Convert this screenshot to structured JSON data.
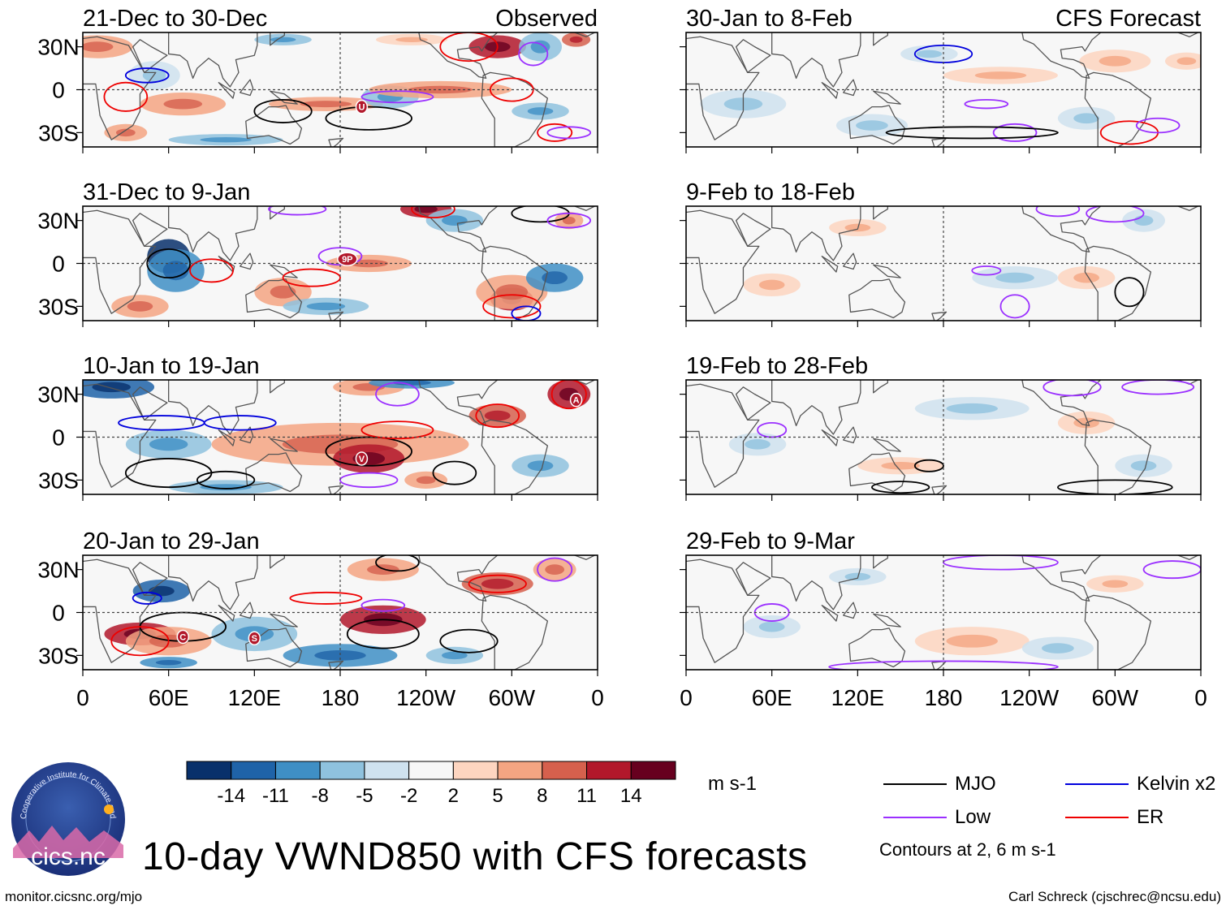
{
  "title": "10-day VWND850 with CFS forecasts",
  "footer_left": "monitor.cicsnc.org/mjo",
  "footer_right": "Carl Schreck (cjschrec@ncsu.edu)",
  "logo": {
    "name": "cics.nc",
    "ring_text": "Cooperative Institute for Climate and Satellites"
  },
  "colors": {
    "levels": [
      "#08306b",
      "#1f63a8",
      "#3f8fc5",
      "#8fc2de",
      "#cfe2ef",
      "#f7f7f7",
      "#fdd5c0",
      "#f4a582",
      "#d6604d",
      "#b2182b",
      "#67001f"
    ],
    "mjo": "#000000",
    "kelvin": "#0000dd",
    "low": "#9b30ff",
    "er": "#ee0000",
    "land": "#555555",
    "grid": "#444444"
  },
  "colorbar": {
    "ticks": [
      "-14",
      "-11",
      "-8",
      "-5",
      "-2",
      "2",
      "5",
      "8",
      "11",
      "14"
    ],
    "units": "m s-1"
  },
  "legend": {
    "items": [
      {
        "label": "MJO",
        "color": "#000000"
      },
      {
        "label": "Kelvin x2",
        "color": "#0000dd"
      },
      {
        "label": "Low",
        "color": "#9b30ff"
      },
      {
        "label": "ER",
        "color": "#ee0000"
      }
    ],
    "note": "Contours at 2, 6 m s-1"
  },
  "chart_data": [
    {
      "type": "heatmap",
      "column": "observed",
      "row": 0,
      "title": "21-Dec to 30-Dec",
      "label": "Observed",
      "variable": "VWND850 anomaly",
      "units": "m s-1",
      "lat_range": [
        -40,
        40
      ],
      "lon_range": [
        0,
        360
      ],
      "y_ticks": [
        "30N",
        "0",
        "30S"
      ],
      "storms": [
        "U"
      ]
    },
    {
      "type": "heatmap",
      "column": "observed",
      "row": 1,
      "title": "31-Dec to 9-Jan",
      "variable": "VWND850 anomaly",
      "units": "m s-1",
      "lat_range": [
        -40,
        40
      ],
      "lon_range": [
        0,
        360
      ],
      "y_ticks": [
        "30N",
        "0",
        "30S"
      ],
      "storms": [
        "9P"
      ]
    },
    {
      "type": "heatmap",
      "column": "observed",
      "row": 2,
      "title": "10-Jan to 19-Jan",
      "variable": "VWND850 anomaly",
      "units": "m s-1",
      "lat_range": [
        -40,
        40
      ],
      "lon_range": [
        0,
        360
      ],
      "y_ticks": [
        "30N",
        "0",
        "30S"
      ],
      "storms": [
        "A",
        "V"
      ]
    },
    {
      "type": "heatmap",
      "column": "observed",
      "row": 3,
      "title": "20-Jan to 29-Jan",
      "variable": "VWND850 anomaly",
      "units": "m s-1",
      "lat_range": [
        -40,
        40
      ],
      "lon_range": [
        0,
        360
      ],
      "y_ticks": [
        "30N",
        "0",
        "30S"
      ],
      "x_ticks": [
        "0",
        "60E",
        "120E",
        "180",
        "120W",
        "60W",
        "0"
      ],
      "storms": [
        "C",
        "S"
      ]
    },
    {
      "type": "heatmap",
      "column": "forecast",
      "row": 0,
      "title": "30-Jan to 8-Feb",
      "label": "CFS Forecast",
      "variable": "VWND850 anomaly",
      "units": "m s-1",
      "lat_range": [
        -40,
        40
      ],
      "lon_range": [
        0,
        360
      ]
    },
    {
      "type": "heatmap",
      "column": "forecast",
      "row": 1,
      "title": "9-Feb to 18-Feb",
      "variable": "VWND850 anomaly",
      "units": "m s-1",
      "lat_range": [
        -40,
        40
      ],
      "lon_range": [
        0,
        360
      ]
    },
    {
      "type": "heatmap",
      "column": "forecast",
      "row": 2,
      "title": "19-Feb to 28-Feb",
      "variable": "VWND850 anomaly",
      "units": "m s-1",
      "lat_range": [
        -40,
        40
      ],
      "lon_range": [
        0,
        360
      ]
    },
    {
      "type": "heatmap",
      "column": "forecast",
      "row": 3,
      "title": "29-Feb to 9-Mar",
      "variable": "VWND850 anomaly",
      "units": "m s-1",
      "lat_range": [
        -40,
        40
      ],
      "lon_range": [
        0,
        360
      ],
      "x_ticks": [
        "0",
        "60E",
        "120E",
        "180",
        "120W",
        "60W",
        "0"
      ]
    }
  ]
}
